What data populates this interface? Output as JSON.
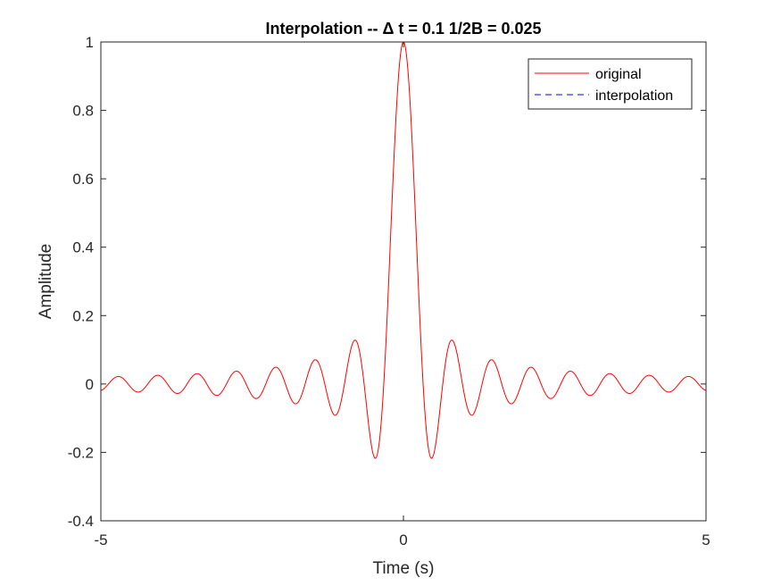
{
  "chart_data": {
    "type": "line",
    "title": "Interpolation -- Δ t = 0.1 1/2B = 0.025",
    "xlabel": "Time (s)",
    "ylabel": "Amplitude",
    "xlim": [
      -5,
      5
    ],
    "ylim": [
      -0.4,
      1
    ],
    "x_ticks": [
      -5,
      0,
      5
    ],
    "x_tick_labels": [
      "-5",
      "0",
      "5"
    ],
    "y_ticks": [
      -0.4,
      -0.2,
      0,
      0.2,
      0.4,
      0.6,
      0.8,
      1
    ],
    "y_tick_labels": [
      "-0.4",
      "-0.2",
      "0",
      "0.2",
      "0.4",
      "0.6",
      "0.8",
      "1"
    ],
    "grid": false,
    "legend_position": "top-right",
    "series": [
      {
        "name": "original",
        "color": "#ff0000",
        "style": "solid",
        "function": "sinc(2*B*t), B = 1/0.65",
        "x_range": [
          -5,
          5
        ],
        "key_points": [
          {
            "x": 0,
            "y": 1.0
          },
          {
            "x": -0.49,
            "y": -0.217
          },
          {
            "x": 0.49,
            "y": -0.217
          },
          {
            "x": -0.82,
            "y": 0.128
          },
          {
            "x": 0.82,
            "y": 0.128
          },
          {
            "x": -1.15,
            "y": -0.091
          },
          {
            "x": 1.15,
            "y": -0.091
          },
          {
            "x": -5,
            "y": 0.0
          },
          {
            "x": 5,
            "y": 0.0
          }
        ]
      },
      {
        "name": "interpolation",
        "color": "#0000ff",
        "style": "dashed"
      }
    ]
  }
}
